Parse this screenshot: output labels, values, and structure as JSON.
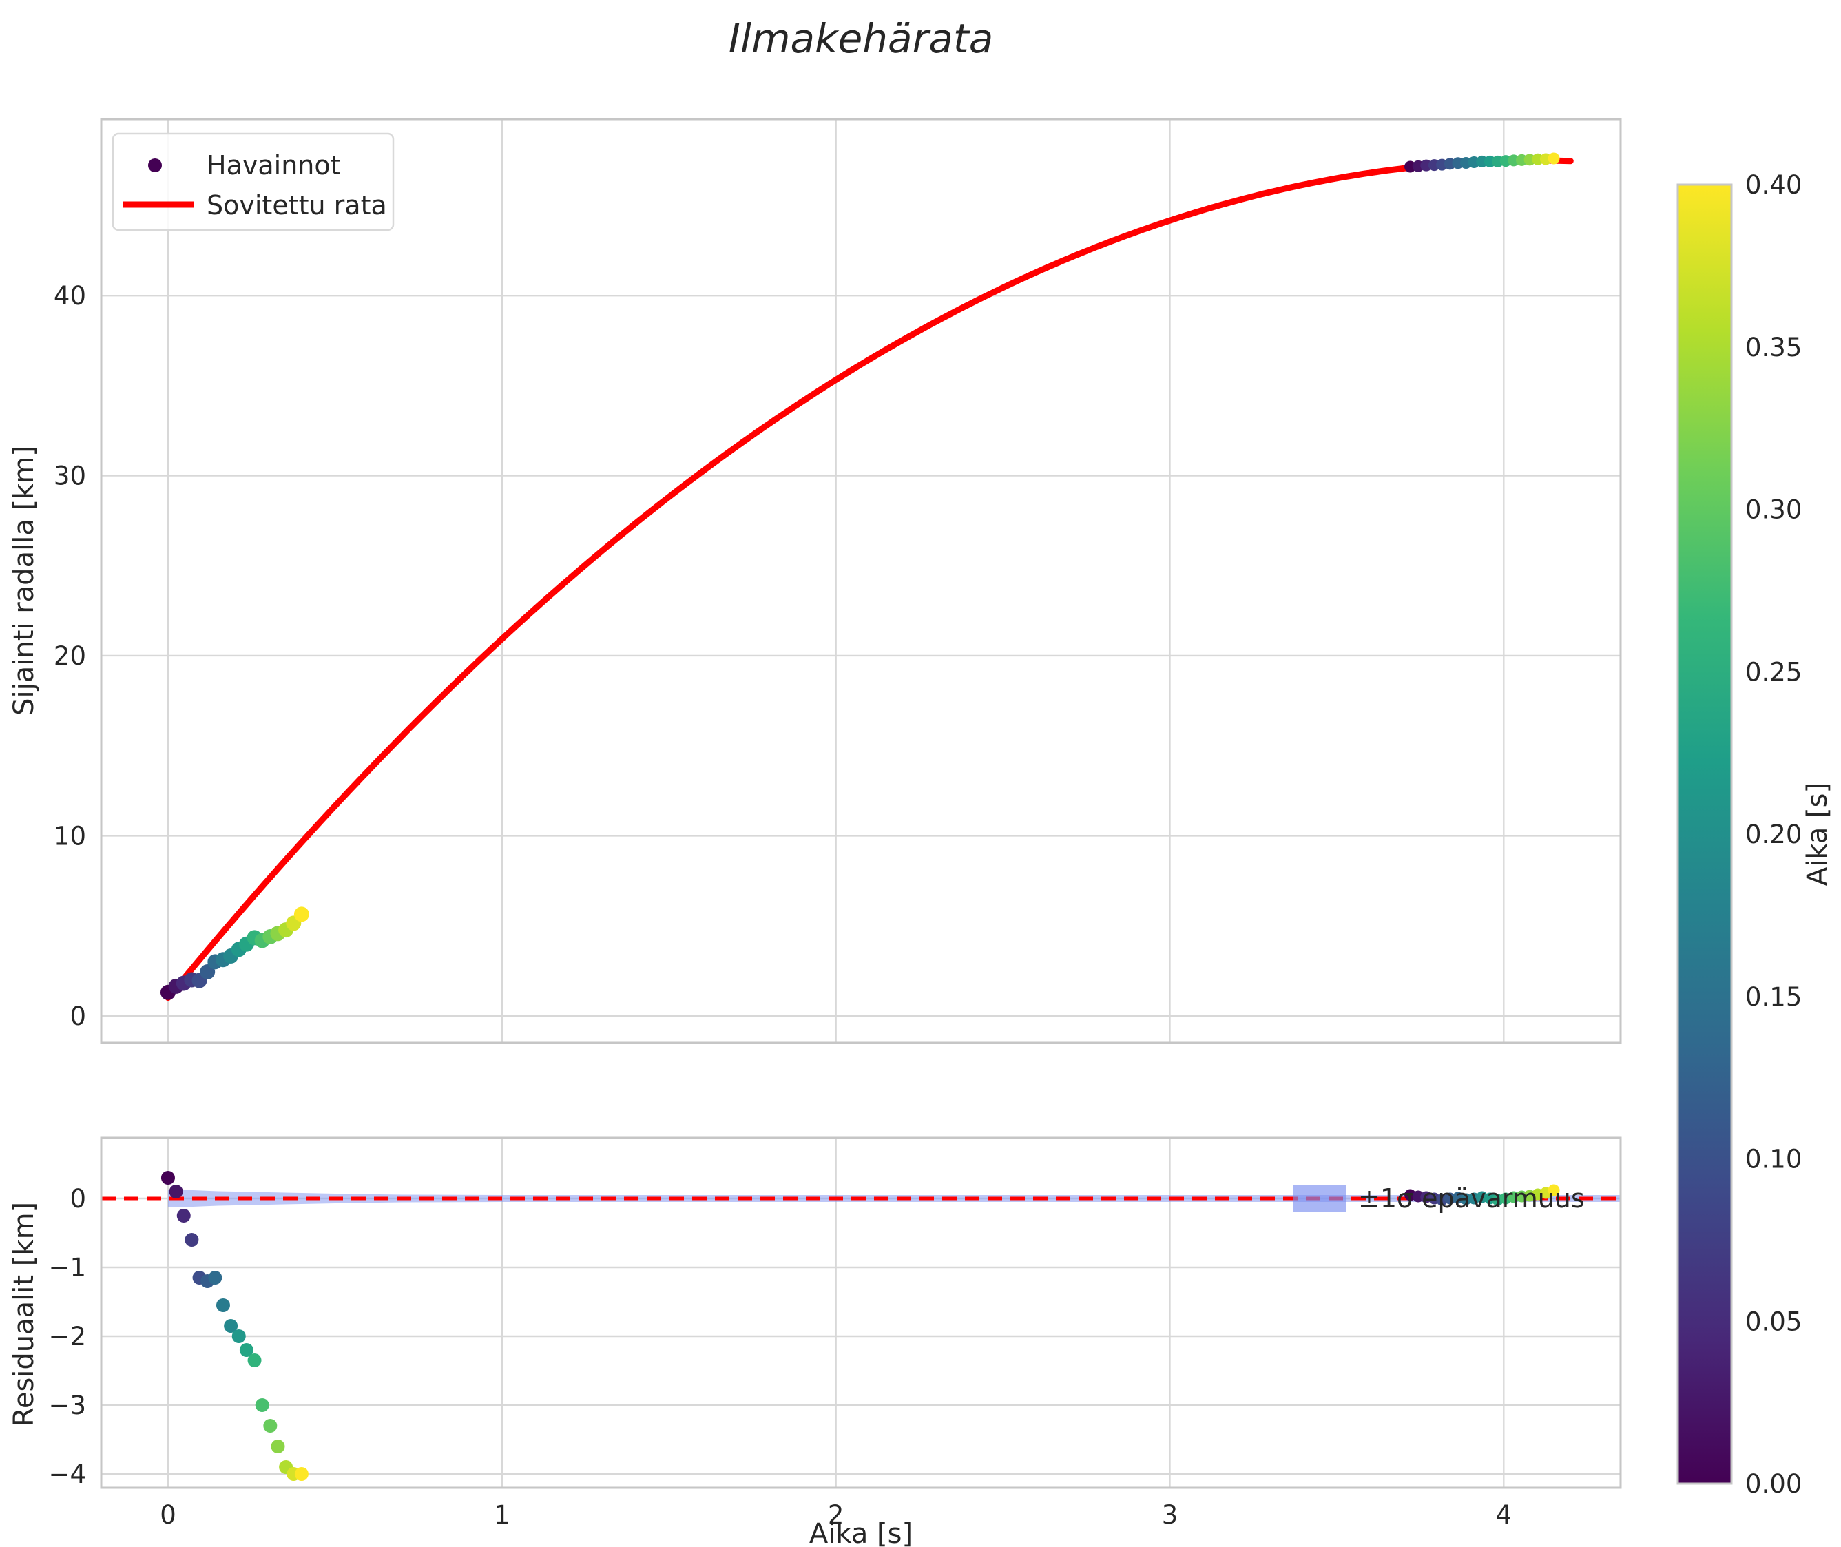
{
  "title": "Ilmakehärata",
  "top_plot": {
    "ylabel": "Sijainti radalla [km]",
    "xlim": [
      -0.2,
      4.35
    ],
    "ylim": [
      -1.5,
      49.8
    ],
    "yticks": [
      {
        "v": 0,
        "label": "0"
      },
      {
        "v": 10,
        "label": "10"
      },
      {
        "v": 20,
        "label": "20"
      },
      {
        "v": 30,
        "label": "30"
      },
      {
        "v": 40,
        "label": "40"
      }
    ],
    "legend": {
      "observations": "Havainnot",
      "fit": "Sovitettu rata"
    }
  },
  "bottom_plot": {
    "ylabel": "Residuaalit [km]",
    "xlabel": "Aika [s]",
    "xlim": [
      -0.2,
      4.35
    ],
    "ylim": [
      -4.2,
      0.88
    ],
    "yticks": [
      {
        "v": 0,
        "label": "0"
      },
      {
        "v": -1,
        "label": "−1"
      },
      {
        "v": -2,
        "label": "−2"
      },
      {
        "v": -3,
        "label": "−3"
      },
      {
        "v": -4,
        "label": "−4"
      }
    ],
    "xticks": [
      {
        "v": 0,
        "label": "0"
      },
      {
        "v": 1,
        "label": "1"
      },
      {
        "v": 2,
        "label": "2"
      },
      {
        "v": 3,
        "label": "3"
      },
      {
        "v": 4,
        "label": "4"
      }
    ],
    "legend": {
      "band": "±1σ epävarmuus"
    }
  },
  "colorbar": {
    "label": "Aika [s]",
    "vmin": 0.0,
    "vmax": 0.4,
    "ticks": [
      "0.00",
      "0.05",
      "0.10",
      "0.15",
      "0.20",
      "0.25",
      "0.30",
      "0.35",
      "0.40"
    ]
  },
  "chart_data": {
    "type": "scatter",
    "title": "Ilmakehärata",
    "xlabel": "Aika [s]",
    "ylabel_top": "Sijainti radalla [km]",
    "ylabel_bottom": "Residuaalit [km]",
    "legend_position": "upper left",
    "grid": true,
    "colormap": {
      "name": "viridis",
      "stops": [
        "#440154",
        "#482878",
        "#3e4989",
        "#31688e",
        "#26828e",
        "#1f9e89",
        "#35b779",
        "#6ece58",
        "#b5de2b",
        "#fde725"
      ]
    },
    "fit_curve": {
      "label": "Sovitettu rata",
      "model": "s(t) = s0 + v0*t + a*t^2",
      "s0": 1.0,
      "v0": 22.7,
      "a": -2.77,
      "t_min": 0.0,
      "t_max": 4.2,
      "color": "#ff0000"
    },
    "zero_line": {
      "y": 0,
      "color": "#ff0000",
      "style": "dashed"
    },
    "uncertainty_band": {
      "label": "±1σ epävarmuus",
      "color": "#7b8ff0",
      "x": [
        0,
        0.05,
        0.1,
        0.15,
        0.2,
        0.3,
        0.4,
        0.5,
        0.7,
        1.0,
        2.0,
        3.0,
        4.35
      ],
      "sigma": [
        0.13,
        0.125,
        0.115,
        0.105,
        0.1,
        0.09,
        0.08,
        0.07,
        0.055,
        0.05,
        0.05,
        0.05,
        0.05
      ]
    },
    "observations": [
      {
        "t": 0.0,
        "s": 1.3,
        "resid": 0.3,
        "color_t": 0.0
      },
      {
        "t": 0.024,
        "s": 1.64,
        "resid": 0.1,
        "color_t": 0.024
      },
      {
        "t": 0.047,
        "s": 1.81,
        "resid": -0.25,
        "color_t": 0.047
      },
      {
        "t": 0.071,
        "s": 2.0,
        "resid": -0.6,
        "color_t": 0.071
      },
      {
        "t": 0.094,
        "s": 1.96,
        "resid": -1.15,
        "color_t": 0.094
      },
      {
        "t": 0.118,
        "s": 2.44,
        "resid": -1.2,
        "color_t": 0.118
      },
      {
        "t": 0.141,
        "s": 3.0,
        "resid": -1.15,
        "color_t": 0.141
      },
      {
        "t": 0.165,
        "s": 3.12,
        "resid": -1.55,
        "color_t": 0.165
      },
      {
        "t": 0.188,
        "s": 3.32,
        "resid": -1.85,
        "color_t": 0.188
      },
      {
        "t": 0.212,
        "s": 3.69,
        "resid": -2.0,
        "color_t": 0.212
      },
      {
        "t": 0.235,
        "s": 3.98,
        "resid": -2.2,
        "color_t": 0.235
      },
      {
        "t": 0.259,
        "s": 4.34,
        "resid": -2.35,
        "color_t": 0.259
      },
      {
        "t": 0.282,
        "s": 4.18,
        "resid": -3.0,
        "color_t": 0.282
      },
      {
        "t": 0.306,
        "s": 4.39,
        "resid": -3.3,
        "color_t": 0.306
      },
      {
        "t": 0.329,
        "s": 4.57,
        "resid": -3.6,
        "color_t": 0.329
      },
      {
        "t": 0.353,
        "s": 4.77,
        "resid": -3.9,
        "color_t": 0.353
      },
      {
        "t": 0.376,
        "s": 5.14,
        "resid": -4.0,
        "color_t": 0.376
      },
      {
        "t": 0.4,
        "s": 5.64,
        "resid": -4.0,
        "color_t": 0.4
      },
      {
        "t": 3.72,
        "s": 47.16,
        "resid": 0.05,
        "color_t": 0.0
      },
      {
        "t": 3.744,
        "s": 47.19,
        "resid": 0.03,
        "color_t": 0.022
      },
      {
        "t": 3.768,
        "s": 47.23,
        "resid": 0.02,
        "color_t": 0.044
      },
      {
        "t": 3.792,
        "s": 47.25,
        "resid": 0.0,
        "color_t": 0.067
      },
      {
        "t": 3.815,
        "s": 47.27,
        "resid": -0.02,
        "color_t": 0.089
      },
      {
        "t": 3.839,
        "s": 47.32,
        "resid": 0.0,
        "color_t": 0.111
      },
      {
        "t": 3.863,
        "s": 47.36,
        "resid": 0.01,
        "color_t": 0.133
      },
      {
        "t": 3.887,
        "s": 47.37,
        "resid": -0.01,
        "color_t": 0.156
      },
      {
        "t": 3.911,
        "s": 47.41,
        "resid": 0.0,
        "color_t": 0.178
      },
      {
        "t": 3.935,
        "s": 47.45,
        "resid": 0.02,
        "color_t": 0.2
      },
      {
        "t": 3.959,
        "s": 47.45,
        "resid": 0.0,
        "color_t": 0.222
      },
      {
        "t": 3.982,
        "s": 47.45,
        "resid": -0.02,
        "color_t": 0.244
      },
      {
        "t": 4.006,
        "s": 47.48,
        "resid": 0.0,
        "color_t": 0.267
      },
      {
        "t": 4.03,
        "s": 47.51,
        "resid": 0.02,
        "color_t": 0.289
      },
      {
        "t": 4.054,
        "s": 47.53,
        "resid": 0.03,
        "color_t": 0.311
      },
      {
        "t": 4.078,
        "s": 47.55,
        "resid": 0.04,
        "color_t": 0.333
      },
      {
        "t": 4.102,
        "s": 47.57,
        "resid": 0.06,
        "color_t": 0.356
      },
      {
        "t": 4.126,
        "s": 47.58,
        "resid": 0.08,
        "color_t": 0.378
      },
      {
        "t": 4.15,
        "s": 47.62,
        "resid": 0.12,
        "color_t": 0.4
      }
    ]
  }
}
